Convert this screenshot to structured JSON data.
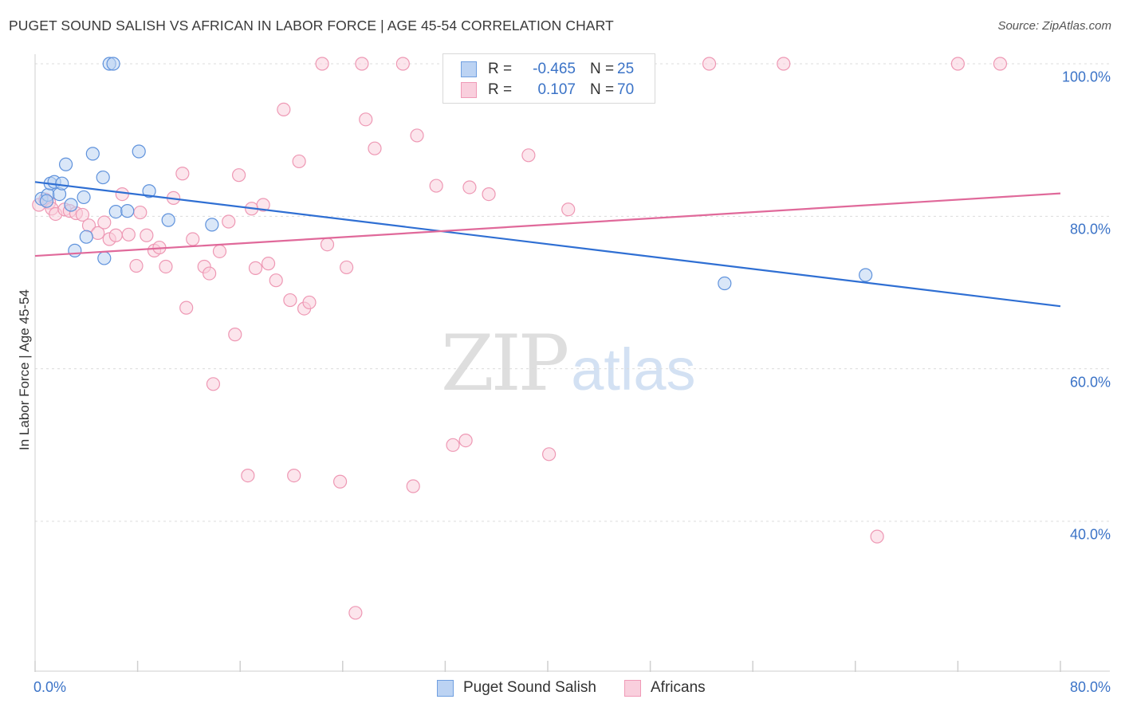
{
  "header": {
    "title": "PUGET SOUND SALISH VS AFRICAN IN LABOR FORCE | AGE 45-54 CORRELATION CHART",
    "source": "Source: ZipAtlas.com"
  },
  "watermark": {
    "zip": "ZIP",
    "atlas": "atlas"
  },
  "legend": {
    "rows": [
      {
        "r_label": "R =",
        "r_value": "-0.465",
        "n_label": "N =",
        "n_value": "25",
        "color": "#6f9fe0",
        "fill": "#bcd3f3"
      },
      {
        "r_label": "R =",
        "r_value": "0.107",
        "n_label": "N =",
        "n_value": "70",
        "color": "#f09ab7",
        "fill": "#f9cfdd"
      }
    ]
  },
  "chart_data": {
    "type": "scatter",
    "title": "PUGET SOUND SALISH VS AFRICAN IN LABOR FORCE | AGE 45-54 CORRELATION CHART",
    "xlabel": "",
    "ylabel": "In Labor Force | Age 45-54",
    "xlim": [
      0,
      80
    ],
    "ylim": [
      21,
      102
    ],
    "x_ticks": [
      "0.0%",
      "80.0%"
    ],
    "y_ticks": [
      {
        "value": 100,
        "label": "100.0%"
      },
      {
        "value": 80,
        "label": "80.0%"
      },
      {
        "value": 60,
        "label": "60.0%"
      },
      {
        "value": 40,
        "label": "40.0%"
      }
    ],
    "grid": "horizontal dashed",
    "legend_position": "bottom",
    "series": [
      {
        "name": "Puget Sound Salish",
        "color": "#5f92dc",
        "fill": "#bcd3f3",
        "trend_color": "#2f6fd3",
        "trend": {
          "x0": 0,
          "y0": 84.5,
          "x1": 80,
          "y1": 68.2
        },
        "points": [
          [
            0.5,
            82.3
          ],
          [
            1.0,
            82.8
          ],
          [
            1.2,
            84.3
          ],
          [
            1.5,
            84.5
          ],
          [
            1.9,
            82.9
          ],
          [
            2.1,
            84.3
          ],
          [
            2.4,
            86.8
          ],
          [
            2.8,
            81.5
          ],
          [
            3.1,
            75.5
          ],
          [
            3.8,
            82.5
          ],
          [
            4.0,
            77.3
          ],
          [
            4.5,
            88.2
          ],
          [
            5.3,
            85.1
          ],
          [
            5.4,
            74.5
          ],
          [
            5.8,
            100.0
          ],
          [
            6.1,
            100.0
          ],
          [
            6.3,
            80.6
          ],
          [
            7.2,
            80.7
          ],
          [
            8.1,
            88.5
          ],
          [
            8.9,
            83.3
          ],
          [
            10.4,
            79.5
          ],
          [
            13.8,
            78.9
          ],
          [
            53.8,
            71.2
          ],
          [
            64.8,
            72.3
          ],
          [
            0.9,
            82.0
          ]
        ]
      },
      {
        "name": "Africans",
        "color": "#ee98b4",
        "fill": "#f9cfdd",
        "trend_color": "#e0699a",
        "trend": {
          "x0": 0,
          "y0": 74.8,
          "x1": 80,
          "y1": 83.0
        },
        "points": [
          [
            0.3,
            81.5
          ],
          [
            0.8,
            82.2
          ],
          [
            1.1,
            81.8
          ],
          [
            1.3,
            81.0
          ],
          [
            1.6,
            80.3
          ],
          [
            2.3,
            80.9
          ],
          [
            2.7,
            80.7
          ],
          [
            3.2,
            80.4
          ],
          [
            3.7,
            80.2
          ],
          [
            4.2,
            78.8
          ],
          [
            4.9,
            77.8
          ],
          [
            5.4,
            79.2
          ],
          [
            5.8,
            77.0
          ],
          [
            6.3,
            77.5
          ],
          [
            6.8,
            82.9
          ],
          [
            7.3,
            77.6
          ],
          [
            7.9,
            73.5
          ],
          [
            8.2,
            80.5
          ],
          [
            8.7,
            77.5
          ],
          [
            9.3,
            75.5
          ],
          [
            9.7,
            75.9
          ],
          [
            10.2,
            73.4
          ],
          [
            10.8,
            82.4
          ],
          [
            11.5,
            85.6
          ],
          [
            11.8,
            68.0
          ],
          [
            12.3,
            77.0
          ],
          [
            13.2,
            73.4
          ],
          [
            13.6,
            72.5
          ],
          [
            13.9,
            58.0
          ],
          [
            14.4,
            75.4
          ],
          [
            15.1,
            79.3
          ],
          [
            15.6,
            64.5
          ],
          [
            15.9,
            85.4
          ],
          [
            16.6,
            46.0
          ],
          [
            16.9,
            81.0
          ],
          [
            17.2,
            73.2
          ],
          [
            17.8,
            81.5
          ],
          [
            18.2,
            73.8
          ],
          [
            18.8,
            71.6
          ],
          [
            19.4,
            94.0
          ],
          [
            19.9,
            69.0
          ],
          [
            20.2,
            46.0
          ],
          [
            20.6,
            87.2
          ],
          [
            21.0,
            67.9
          ],
          [
            21.4,
            68.7
          ],
          [
            22.4,
            100.0
          ],
          [
            22.8,
            76.3
          ],
          [
            23.8,
            45.2
          ],
          [
            24.3,
            73.3
          ],
          [
            25.0,
            28.0
          ],
          [
            25.5,
            100.0
          ],
          [
            25.8,
            92.7
          ],
          [
            26.5,
            88.9
          ],
          [
            28.7,
            100.0
          ],
          [
            29.5,
            44.6
          ],
          [
            29.8,
            90.6
          ],
          [
            31.3,
            84.0
          ],
          [
            32.6,
            50.0
          ],
          [
            33.6,
            50.6
          ],
          [
            33.9,
            83.8
          ],
          [
            35.4,
            82.9
          ],
          [
            38.5,
            88.0
          ],
          [
            40.1,
            48.8
          ],
          [
            41.6,
            80.9
          ],
          [
            43.4,
            100.0
          ],
          [
            52.6,
            100.0
          ],
          [
            58.4,
            100.0
          ],
          [
            65.7,
            38.0
          ],
          [
            72.0,
            100.0
          ],
          [
            75.3,
            100.0
          ]
        ]
      }
    ]
  }
}
